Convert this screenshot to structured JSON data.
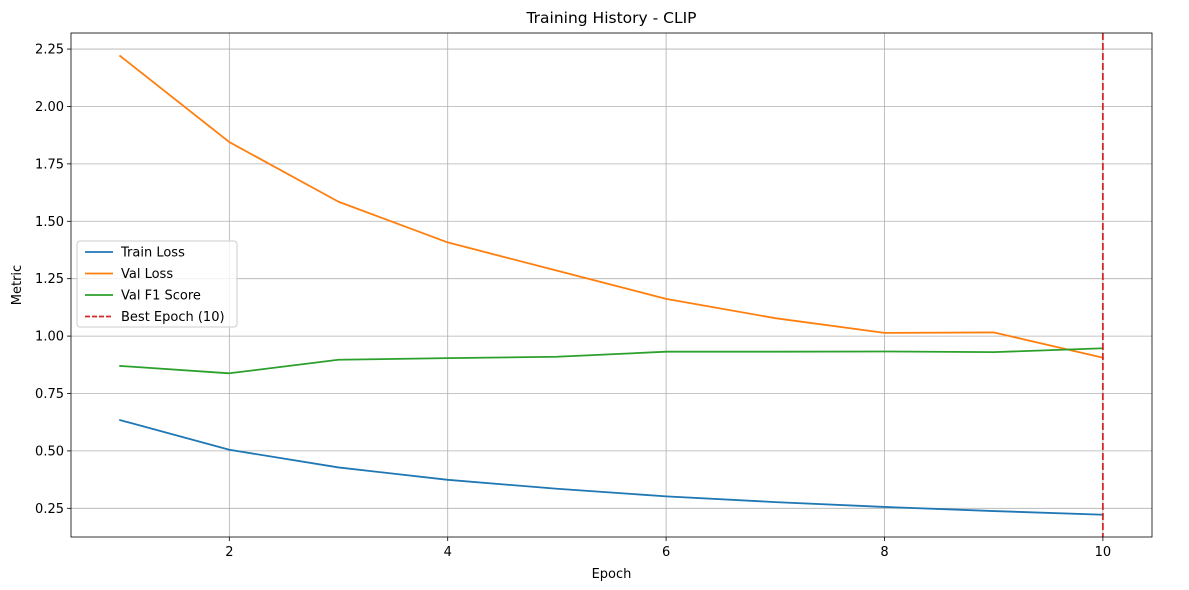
{
  "chart_data": {
    "type": "line",
    "title": "Training History - CLIP",
    "xlabel": "Epoch",
    "ylabel": "Metric",
    "xlim": [
      0.55,
      10.45
    ],
    "ylim": [
      0.125,
      2.32
    ],
    "xticks": [
      2,
      4,
      6,
      8,
      10
    ],
    "yticks": [
      0.25,
      0.5,
      0.75,
      1.0,
      1.25,
      1.5,
      1.75,
      2.0,
      2.25
    ],
    "grid": true,
    "legend_position": "center-left",
    "x": [
      1,
      2,
      3,
      4,
      5,
      6,
      7,
      8,
      9,
      10
    ],
    "series": [
      {
        "name": "Train Loss",
        "color": "#1f77b4",
        "values": [
          0.634,
          0.505,
          0.428,
          0.374,
          0.335,
          0.302,
          0.277,
          0.256,
          0.238,
          0.222
        ]
      },
      {
        "name": "Val Loss",
        "color": "#ff7f0e",
        "values": [
          2.22,
          1.845,
          1.585,
          1.408,
          1.285,
          1.162,
          1.078,
          1.014,
          1.016,
          0.906
        ]
      },
      {
        "name": "Val F1 Score",
        "color": "#2ca02c",
        "values": [
          0.87,
          0.838,
          0.897,
          0.904,
          0.91,
          0.932,
          0.932,
          0.933,
          0.93,
          0.947
        ]
      }
    ],
    "annotations": [
      {
        "type": "vline",
        "x": 10,
        "color": "#d62728",
        "style": "dashed",
        "label": "Best Epoch (10)"
      }
    ]
  }
}
